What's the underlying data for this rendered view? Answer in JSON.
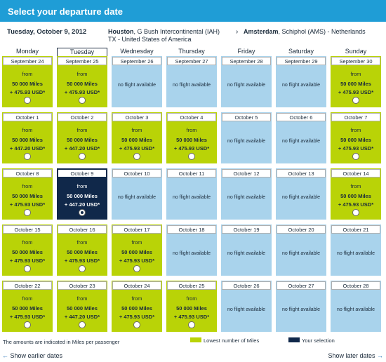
{
  "header": {
    "title": "Select your departure date"
  },
  "trip": {
    "date": "Tuesday, October 9, 2012",
    "origin_city": "Houston",
    "origin_airport": ", G Bush Intercontinental (IAH)",
    "origin_region": "TX - United States of America",
    "arrow": "›",
    "dest_city": "Amsterdam",
    "dest_airport": ", Schiphol (AMS) - Netherlands"
  },
  "days": [
    "Monday",
    "Tuesday",
    "Wednesday",
    "Thursday",
    "Friday",
    "Saturday",
    "Sunday"
  ],
  "weeks": [
    [
      {
        "date": "September 24",
        "type": "green",
        "from": "from",
        "miles": "50 000 Miles",
        "price": "+ 475.93 USD*"
      },
      {
        "date": "September 25",
        "type": "green",
        "from": "from",
        "miles": "50 000 Miles",
        "price": "+ 475.93 USD*"
      },
      {
        "date": "September 26",
        "type": "blue",
        "nf": "no flight available"
      },
      {
        "date": "September 27",
        "type": "blue",
        "nf": "no flight available"
      },
      {
        "date": "September 28",
        "type": "blue",
        "nf": "no flight available"
      },
      {
        "date": "September 29",
        "type": "blue",
        "nf": "no flight available"
      },
      {
        "date": "September 30",
        "type": "green",
        "from": "from",
        "miles": "50 000 Miles",
        "price": "+ 475.93 USD*"
      }
    ],
    [
      {
        "date": "October 1",
        "type": "green",
        "from": "from",
        "miles": "50 000 Miles",
        "price": "+ 447.20 USD*"
      },
      {
        "date": "October 2",
        "type": "green",
        "from": "from",
        "miles": "50 000 Miles",
        "price": "+ 447.20 USD*"
      },
      {
        "date": "October 3",
        "type": "green",
        "from": "from",
        "miles": "50 000 Miles",
        "price": "+ 475.93 USD*"
      },
      {
        "date": "October 4",
        "type": "green",
        "from": "from",
        "miles": "50 000 Miles",
        "price": "+ 475.93 USD*"
      },
      {
        "date": "October 5",
        "type": "blue",
        "nf": "no flight available"
      },
      {
        "date": "October 6",
        "type": "blue",
        "nf": "no flight available"
      },
      {
        "date": "October 7",
        "type": "green",
        "from": "from",
        "miles": "50 000 Miles",
        "price": "+ 475.93 USD*"
      }
    ],
    [
      {
        "date": "October 8",
        "type": "green",
        "from": "from",
        "miles": "50 000 Miles",
        "price": "+ 475.93 USD*"
      },
      {
        "date": "October 9",
        "type": "selected",
        "from": "from",
        "miles": "50 000 Miles",
        "price": "+ 447.20 USD*"
      },
      {
        "date": "October 10",
        "type": "blue",
        "nf": "no flight available"
      },
      {
        "date": "October 11",
        "type": "blue",
        "nf": "no flight available"
      },
      {
        "date": "October 12",
        "type": "blue",
        "nf": "no flight available"
      },
      {
        "date": "October 13",
        "type": "blue",
        "nf": "no flight available"
      },
      {
        "date": "October 14",
        "type": "green",
        "from": "from",
        "miles": "50 000 Miles",
        "price": "+ 475.93 USD*"
      }
    ],
    [
      {
        "date": "October 15",
        "type": "green",
        "from": "from",
        "miles": "50 000 Miles",
        "price": "+ 475.93 USD*"
      },
      {
        "date": "October 16",
        "type": "green",
        "from": "from",
        "miles": "50 000 Miles",
        "price": "+ 475.93 USD*"
      },
      {
        "date": "October 17",
        "type": "green",
        "from": "from",
        "miles": "50 000 Miles",
        "price": "+ 475.93 USD*"
      },
      {
        "date": "October 18",
        "type": "blue",
        "nf": "no flight available"
      },
      {
        "date": "October 19",
        "type": "blue",
        "nf": "no flight available"
      },
      {
        "date": "October 20",
        "type": "blue",
        "nf": "no flight available"
      },
      {
        "date": "October 21",
        "type": "blue",
        "nf": "no flight available"
      }
    ],
    [
      {
        "date": "October 22",
        "type": "green",
        "from": "from",
        "miles": "50 000 Miles",
        "price": "+ 475.93 USD*"
      },
      {
        "date": "October 23",
        "type": "green",
        "from": "from",
        "miles": "50 000 Miles",
        "price": "+ 447.20 USD*"
      },
      {
        "date": "October 24",
        "type": "green",
        "from": "from",
        "miles": "50 000 Miles",
        "price": "+ 475.93 USD*"
      },
      {
        "date": "October 25",
        "type": "green",
        "from": "from",
        "miles": "50 000 Miles",
        "price": "+ 475.93 USD*"
      },
      {
        "date": "October 26",
        "type": "blue",
        "nf": "no flight available"
      },
      {
        "date": "October 27",
        "type": "blue",
        "nf": "no flight available"
      },
      {
        "date": "October 28",
        "type": "blue",
        "nf": "no flight available"
      }
    ]
  ],
  "footer": {
    "note": "The amounts are indicated in Miles per passenger",
    "legend_green": "Lowest number of Miles",
    "legend_selected": "Your selection",
    "earlier": "Show earlier dates",
    "later": "Show later dates"
  },
  "colors": {
    "header_blue": "#1f9dd6",
    "green": "#b9d307",
    "light_blue": "#a9d3ec",
    "selected": "#10284a"
  }
}
